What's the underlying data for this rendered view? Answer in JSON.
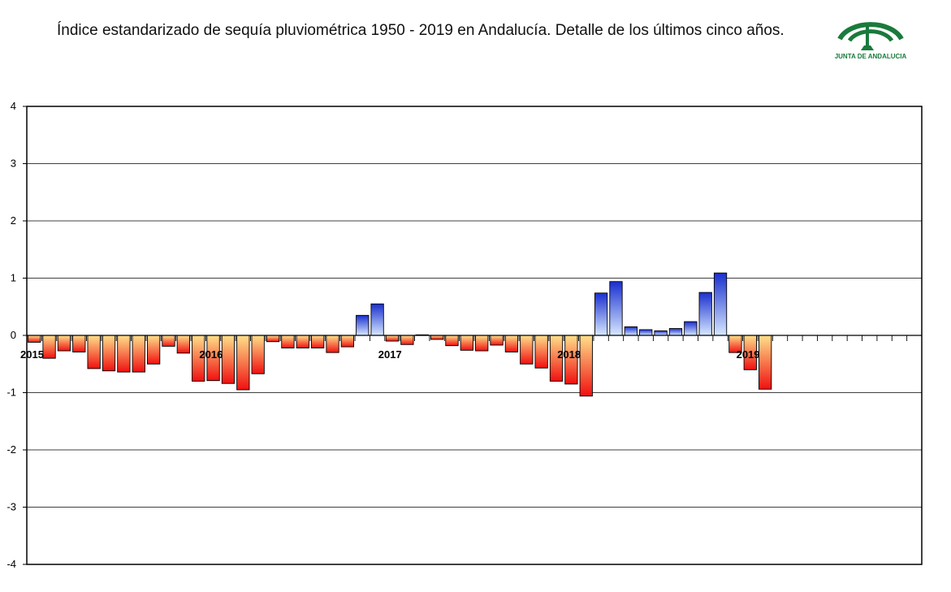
{
  "title": "Índice estandarizado de sequía pluviométrica 1950 - 2019 en Andalucía. Detalle de los últimos cinco años.",
  "logo_text": "JUNTA DE ANDALUCIA",
  "colors": {
    "brand_green": "#1a7a3c",
    "positive_dark": "#1a2fcf",
    "positive_light": "#cfe4ff",
    "negative_dark": "#f01010",
    "negative_light": "#ffe08a",
    "grid": "#000000"
  },
  "chart_data": {
    "type": "bar",
    "title": "Índice estandarizado de sequía pluviométrica 1950 - 2019 en Andalucía. Detalle de los últimos cinco años.",
    "xlabel": "",
    "ylabel": "",
    "ylim": [
      -4,
      4
    ],
    "yticks": [
      -4,
      -3,
      -2,
      -1,
      0,
      1,
      2,
      3,
      4
    ],
    "grid": true,
    "total_slots": 60,
    "year_labels": [
      {
        "label": "2015",
        "index": 0
      },
      {
        "label": "2016",
        "index": 12
      },
      {
        "label": "2017",
        "index": 24
      },
      {
        "label": "2018",
        "index": 36
      },
      {
        "label": "2019",
        "index": 48
      }
    ],
    "values": [
      -0.12,
      -0.4,
      -0.27,
      -0.29,
      -0.58,
      -0.62,
      -0.64,
      -0.64,
      -0.5,
      -0.19,
      -0.31,
      -0.8,
      -0.79,
      -0.84,
      -0.95,
      -0.67,
      -0.11,
      -0.22,
      -0.22,
      -0.22,
      -0.3,
      -0.2,
      0.35,
      0.55,
      -0.1,
      -0.16,
      0.01,
      -0.07,
      -0.18,
      -0.26,
      -0.27,
      -0.17,
      -0.29,
      -0.5,
      -0.57,
      -0.8,
      -0.85,
      -1.06,
      0.74,
      0.94,
      0.15,
      0.1,
      0.08,
      0.12,
      0.24,
      0.75,
      1.09,
      -0.3,
      -0.6,
      -0.94
    ]
  }
}
